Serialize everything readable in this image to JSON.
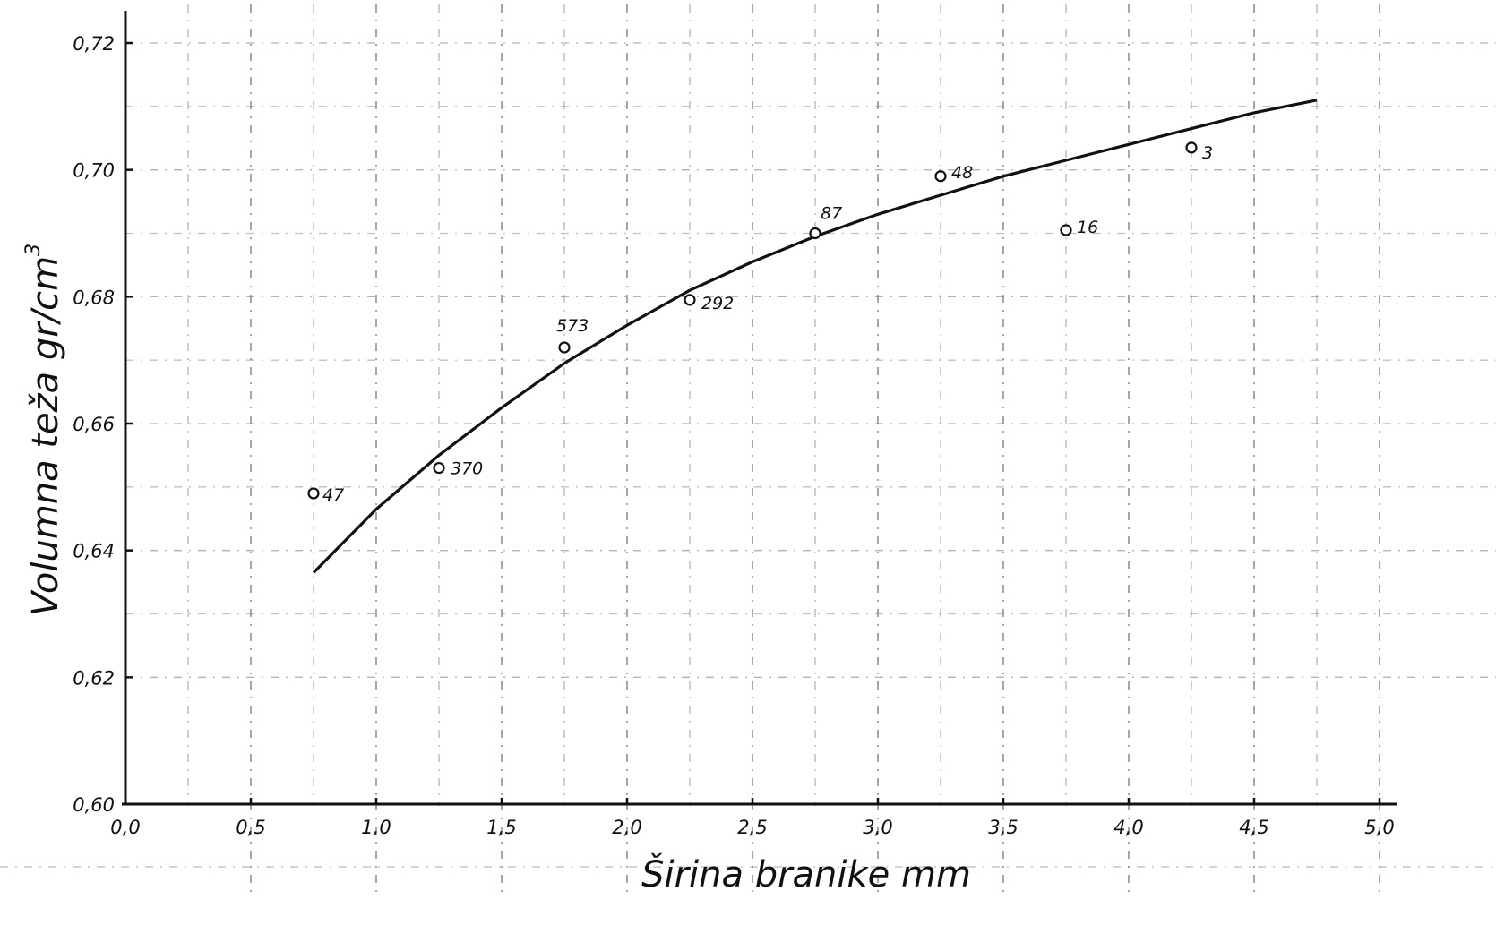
{
  "chart_data": {
    "type": "scatter",
    "title": "",
    "xlabel": "Širina branike  mm",
    "ylabel": "Volumna teža  gr/cm",
    "ylabel_superscript": "3",
    "xlim": [
      0.0,
      5.0
    ],
    "ylim": [
      0.6,
      0.72
    ],
    "x_ticks": [
      0.0,
      0.5,
      1.0,
      1.5,
      2.0,
      2.5,
      3.0,
      3.5,
      4.0,
      4.5,
      5.0
    ],
    "x_tick_labels": [
      "0,0",
      "0,5",
      "1,0",
      "1,5",
      "2,0",
      "2,5",
      "3,0",
      "3,5",
      "4,0",
      "4,5",
      "5,0"
    ],
    "y_ticks": [
      0.6,
      0.62,
      0.64,
      0.66,
      0.68,
      0.7,
      0.72
    ],
    "y_tick_labels": [
      "0,60",
      "0,62",
      "0,64",
      "0,66",
      "0,68",
      "0,70",
      "0,72"
    ],
    "grid": true,
    "points": [
      {
        "x": 0.75,
        "y": 0.649,
        "label": "47"
      },
      {
        "x": 1.25,
        "y": 0.653,
        "label": "370"
      },
      {
        "x": 1.75,
        "y": 0.672,
        "label": "573"
      },
      {
        "x": 2.25,
        "y": 0.6795,
        "label": "292"
      },
      {
        "x": 2.75,
        "y": 0.69,
        "label": "87"
      },
      {
        "x": 3.25,
        "y": 0.699,
        "label": "48"
      },
      {
        "x": 3.75,
        "y": 0.6905,
        "label": "16"
      },
      {
        "x": 4.25,
        "y": 0.7035,
        "label": "3"
      }
    ],
    "fit_curve": {
      "x": [
        0.75,
        1.0,
        1.25,
        1.5,
        1.75,
        2.0,
        2.25,
        2.5,
        2.75,
        3.0,
        3.25,
        3.5,
        3.75,
        4.0,
        4.25,
        4.5,
        4.75
      ],
      "y": [
        0.6365,
        0.6465,
        0.655,
        0.6625,
        0.6695,
        0.6755,
        0.681,
        0.6855,
        0.6895,
        0.693,
        0.696,
        0.699,
        0.7015,
        0.704,
        0.7065,
        0.709,
        0.711
      ]
    }
  }
}
